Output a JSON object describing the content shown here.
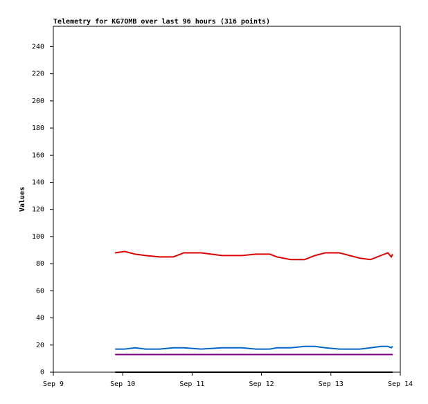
{
  "chart_data": {
    "type": "line",
    "title": "Telemetry for KG7OMB over last 96 hours (316 points)",
    "ylabel": "Values",
    "x": [
      9.89,
      10.03,
      10.18,
      10.33,
      10.53,
      10.73,
      10.88,
      11.13,
      11.43,
      11.72,
      11.92,
      12.12,
      12.22,
      12.42,
      12.62,
      12.77,
      12.92,
      13.12,
      13.27,
      13.42,
      13.57,
      13.72,
      13.82,
      13.87,
      13.89
    ],
    "series": [
      {
        "color": "#dd0000",
        "values": [
          88,
          89,
          87,
          86,
          85,
          85,
          88,
          88,
          86,
          86,
          87,
          87,
          85,
          83,
          83,
          86,
          88,
          88,
          86,
          84,
          83,
          86,
          88,
          85,
          87
        ]
      },
      {
        "color": "#0066cc",
        "values": [
          17,
          17,
          18,
          17,
          17,
          18,
          18,
          17,
          18,
          18,
          17,
          17,
          18,
          18,
          19,
          19,
          18,
          17,
          17,
          17,
          18,
          19,
          19,
          18,
          19
        ]
      },
      {
        "color": "#800080",
        "values": [
          13,
          13,
          13,
          13,
          13,
          13,
          13,
          13,
          13,
          13,
          13,
          13,
          13,
          13,
          13,
          13,
          13,
          13,
          13,
          13,
          13,
          13,
          13,
          13,
          13
        ]
      },
      {
        "color": "#000000",
        "values": [
          0,
          0,
          0,
          0,
          0,
          0,
          0,
          0,
          0,
          0,
          0,
          0,
          0,
          0,
          0,
          0,
          0,
          0,
          0,
          0,
          0,
          0,
          0,
          0,
          0
        ]
      }
    ],
    "xlim": [
      9,
      14
    ],
    "xticks": [
      {
        "value": 9,
        "label": "Sep 9"
      },
      {
        "value": 10,
        "label": "Sep 10"
      },
      {
        "value": 11,
        "label": "Sep 11"
      },
      {
        "value": 12,
        "label": "Sep 12"
      },
      {
        "value": 13,
        "label": "Sep 13"
      },
      {
        "value": 14,
        "label": "Sep 14"
      }
    ],
    "ylim": [
      0,
      255
    ],
    "yticks": [
      0,
      20,
      40,
      60,
      80,
      100,
      120,
      140,
      160,
      180,
      200,
      220,
      240
    ]
  }
}
